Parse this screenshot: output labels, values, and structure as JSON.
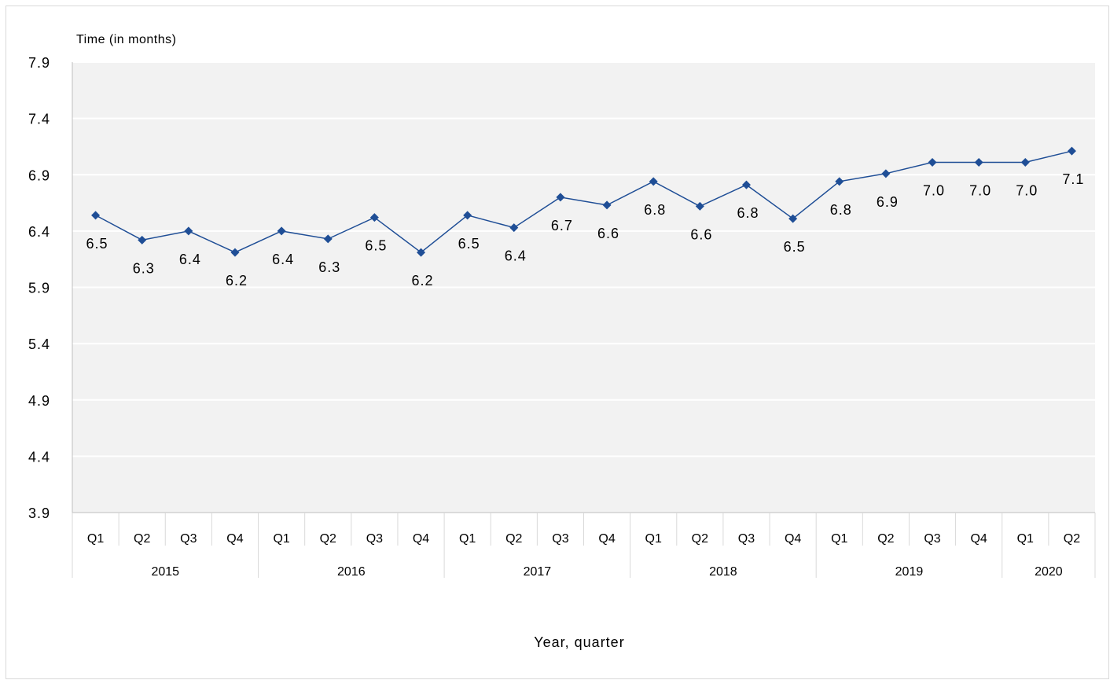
{
  "chart_data": {
    "type": "line",
    "ylabel": "Time (in months)",
    "xlabel": "Year, quarter",
    "ylim": [
      3.9,
      7.9
    ],
    "yticks": [
      "3.9",
      "4.4",
      "4.9",
      "5.4",
      "5.9",
      "6.4",
      "6.9",
      "7.4",
      "7.9"
    ],
    "grid": true,
    "line_color": "#1f4e96",
    "plot_background": "#f2f2f2",
    "quarters": [
      "Q1",
      "Q2",
      "Q3",
      "Q4",
      "Q1",
      "Q2",
      "Q3",
      "Q4",
      "Q1",
      "Q2",
      "Q3",
      "Q4",
      "Q1",
      "Q2",
      "Q3",
      "Q4",
      "Q1",
      "Q2",
      "Q3",
      "Q4",
      "Q1",
      "Q2"
    ],
    "years": [
      {
        "label": "2015",
        "count": 4
      },
      {
        "label": "2016",
        "count": 4
      },
      {
        "label": "2017",
        "count": 4
      },
      {
        "label": "2018",
        "count": 4
      },
      {
        "label": "2019",
        "count": 4
      },
      {
        "label": "2020",
        "count": 2
      }
    ],
    "values": [
      6.54,
      6.32,
      6.4,
      6.21,
      6.4,
      6.33,
      6.52,
      6.21,
      6.54,
      6.43,
      6.7,
      6.63,
      6.84,
      6.62,
      6.81,
      6.51,
      6.84,
      6.91,
      7.01,
      7.01,
      7.01,
      7.11
    ],
    "labels": [
      "6.5",
      "6.3",
      "6.4",
      "6.2",
      "6.4",
      "6.3",
      "6.5",
      "6.2",
      "6.5",
      "6.4",
      "6.7",
      "6.6",
      "6.8",
      "6.6",
      "6.8",
      "6.5",
      "6.8",
      "6.9",
      "7.0",
      "7.0",
      "7.0",
      "7.1"
    ]
  }
}
